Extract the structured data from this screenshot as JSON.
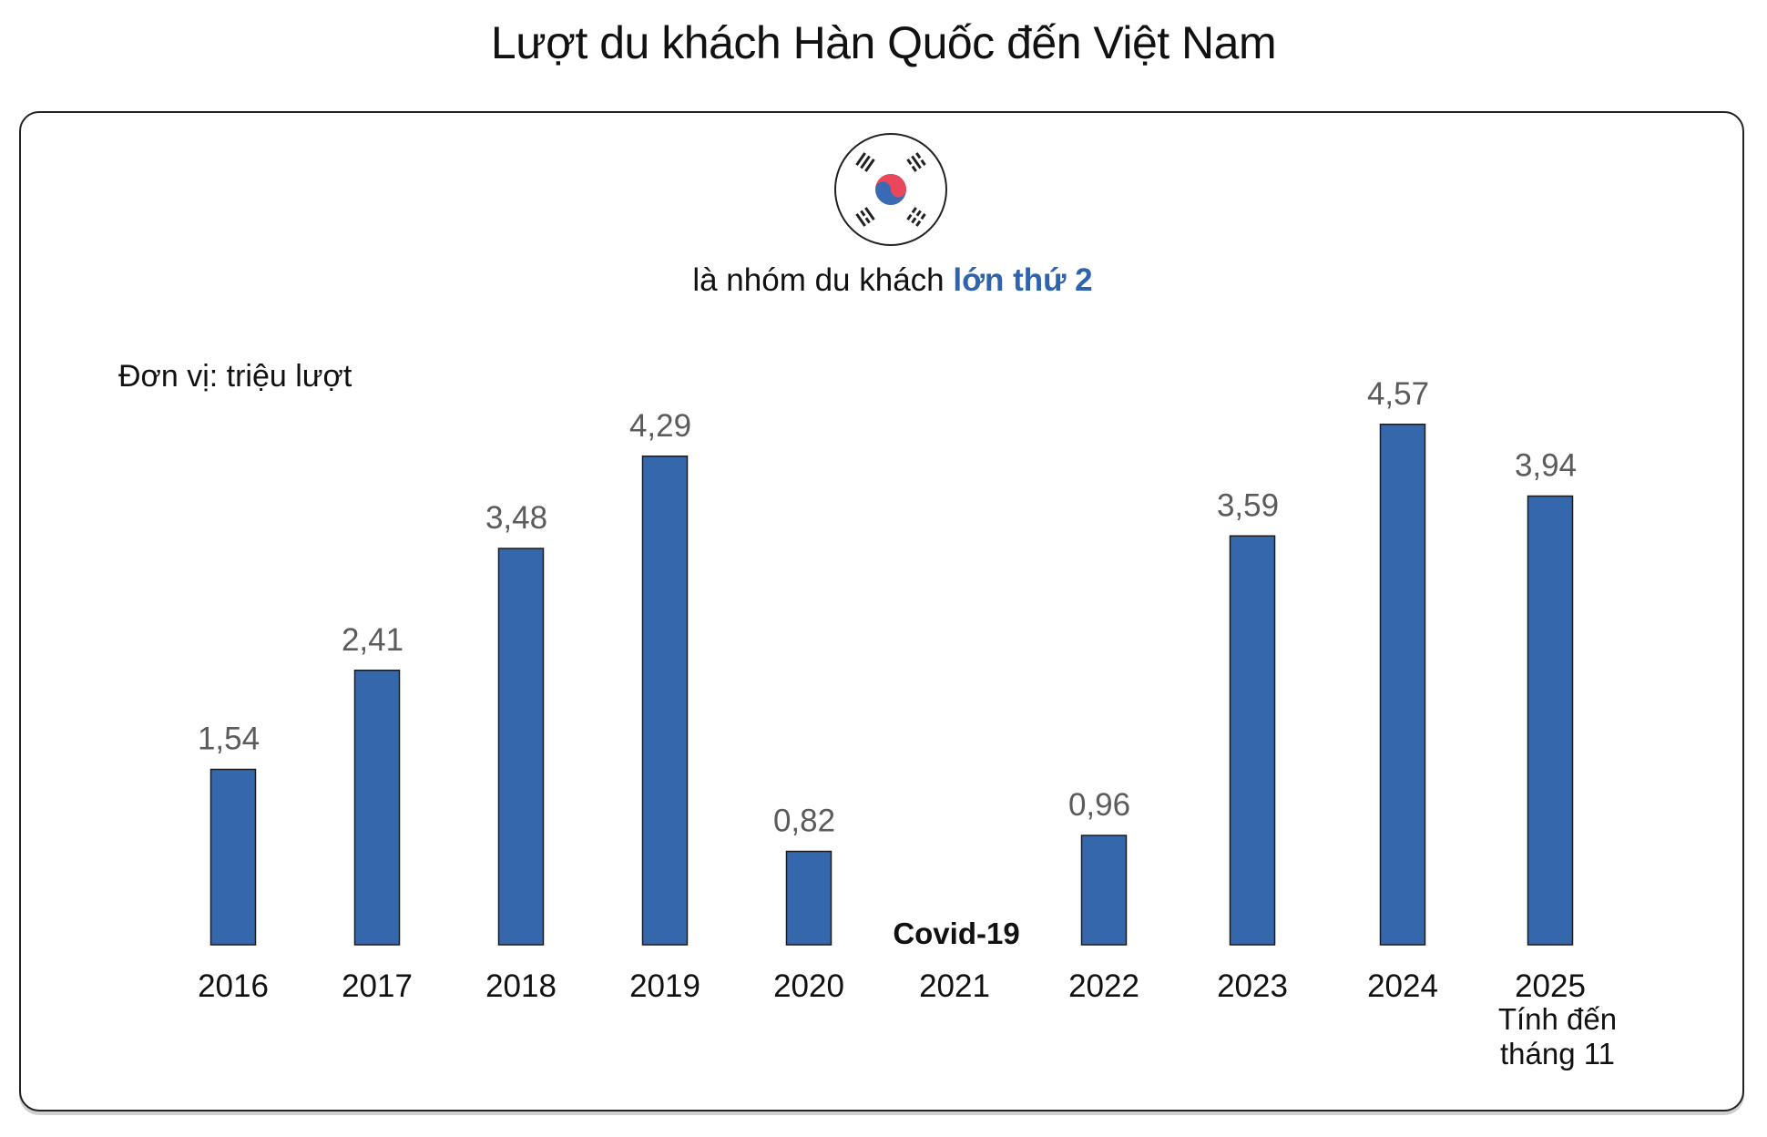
{
  "header": {
    "title": "Lượt du khách Hàn Quốc đến Việt Nam"
  },
  "subtitle": {
    "prefix": "là nhóm du khách ",
    "highlight": "lớn thứ 2"
  },
  "flag_icon": "south-korea-flag-icon",
  "chart_data": {
    "type": "bar",
    "title": "Lượt du khách Hàn Quốc đến Việt Nam",
    "unit_label": "Đơn vị: triệu lượt",
    "categories": [
      "2016",
      "2017",
      "2018",
      "2019",
      "2020",
      "2021",
      "2022",
      "2023",
      "2024",
      "2025"
    ],
    "values": [
      1.54,
      2.41,
      3.48,
      4.29,
      0.82,
      null,
      0.96,
      3.59,
      4.57,
      3.94
    ],
    "value_labels": [
      "1,54",
      "2,41",
      "3,48",
      "4,29",
      "0,82",
      "",
      "0,96",
      "3,59",
      "4,57",
      "3,94"
    ],
    "ylim": [
      0,
      4.6
    ],
    "xlabel": "",
    "ylabel": "",
    "grid": false,
    "annotations": {
      "gap_note": "Covid-19",
      "last_note_line1": "Tính đến",
      "last_note_line2": "tháng 11"
    },
    "colors": {
      "bar": "#3567ad",
      "value_label": "#5b5b5b",
      "highlight": "#2f63ad"
    }
  }
}
